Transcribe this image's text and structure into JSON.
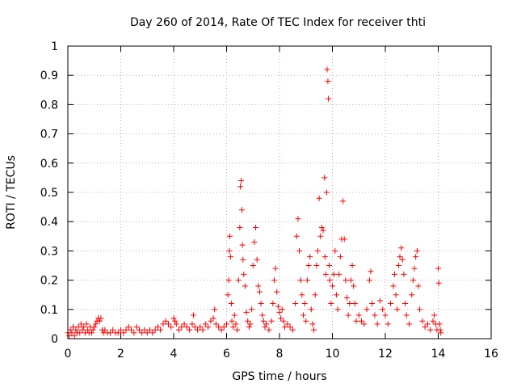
{
  "chart_data": {
    "type": "scatter",
    "title": "Day 260 of 2014, Rate Of TEC Index for receiver thti",
    "xlabel": "GPS time / hours",
    "ylabel": "ROTI / TECUs",
    "xlim": [
      0,
      16
    ],
    "ylim": [
      0,
      1
    ],
    "x_ticks": [
      0,
      2,
      4,
      6,
      8,
      10,
      12,
      14,
      16
    ],
    "x_tick_labels": [
      "0",
      "2",
      "4",
      "6",
      "8",
      "10",
      "12",
      "14",
      "16"
    ],
    "y_ticks": [
      0,
      0.1,
      0.2,
      0.3,
      0.4,
      0.5,
      0.6,
      0.7,
      0.8,
      0.9,
      1
    ],
    "y_tick_labels": [
      "0",
      "0.1",
      "0.2",
      "0.3",
      "0.4",
      "0.5",
      "0.6",
      "0.7",
      "0.8",
      "0.9",
      "1"
    ],
    "grid": true,
    "marker": "+",
    "color": "#ff0000",
    "series": [
      {
        "name": "ROTI",
        "points": [
          [
            0.0,
            0.02
          ],
          [
            0.05,
            0.01
          ],
          [
            0.1,
            0.03
          ],
          [
            0.15,
            0.02
          ],
          [
            0.2,
            0.04
          ],
          [
            0.25,
            0.01
          ],
          [
            0.3,
            0.03
          ],
          [
            0.35,
            0.02
          ],
          [
            0.4,
            0.04
          ],
          [
            0.45,
            0.02
          ],
          [
            0.5,
            0.05
          ],
          [
            0.55,
            0.03
          ],
          [
            0.6,
            0.04
          ],
          [
            0.65,
            0.02
          ],
          [
            0.7,
            0.05
          ],
          [
            0.75,
            0.03
          ],
          [
            0.8,
            0.02
          ],
          [
            0.85,
            0.04
          ],
          [
            0.9,
            0.02
          ],
          [
            0.95,
            0.03
          ],
          [
            1.0,
            0.04
          ],
          [
            1.05,
            0.05
          ],
          [
            1.1,
            0.06
          ],
          [
            1.15,
            0.07
          ],
          [
            1.2,
            0.06
          ],
          [
            1.25,
            0.07
          ],
          [
            1.3,
            0.03
          ],
          [
            1.35,
            0.02
          ],
          [
            1.4,
            0.03
          ],
          [
            1.5,
            0.02
          ],
          [
            1.6,
            0.02
          ],
          [
            1.7,
            0.03
          ],
          [
            1.8,
            0.02
          ],
          [
            1.9,
            0.02
          ],
          [
            2.0,
            0.03
          ],
          [
            2.1,
            0.02
          ],
          [
            2.2,
            0.03
          ],
          [
            2.3,
            0.04
          ],
          [
            2.4,
            0.03
          ],
          [
            2.5,
            0.02
          ],
          [
            2.6,
            0.04
          ],
          [
            2.7,
            0.03
          ],
          [
            2.8,
            0.02
          ],
          [
            2.9,
            0.03
          ],
          [
            3.0,
            0.02
          ],
          [
            3.1,
            0.03
          ],
          [
            3.2,
            0.02
          ],
          [
            3.3,
            0.03
          ],
          [
            3.4,
            0.04
          ],
          [
            3.5,
            0.03
          ],
          [
            3.6,
            0.05
          ],
          [
            3.7,
            0.06
          ],
          [
            3.8,
            0.05
          ],
          [
            3.9,
            0.04
          ],
          [
            4.0,
            0.07
          ],
          [
            4.05,
            0.06
          ],
          [
            4.1,
            0.05
          ],
          [
            4.2,
            0.03
          ],
          [
            4.3,
            0.04
          ],
          [
            4.4,
            0.05
          ],
          [
            4.5,
            0.04
          ],
          [
            4.6,
            0.03
          ],
          [
            4.7,
            0.05
          ],
          [
            4.75,
            0.08
          ],
          [
            4.8,
            0.04
          ],
          [
            4.9,
            0.03
          ],
          [
            5.0,
            0.04
          ],
          [
            5.1,
            0.03
          ],
          [
            5.2,
            0.05
          ],
          [
            5.3,
            0.04
          ],
          [
            5.4,
            0.06
          ],
          [
            5.5,
            0.07
          ],
          [
            5.55,
            0.1
          ],
          [
            5.6,
            0.05
          ],
          [
            5.7,
            0.04
          ],
          [
            5.8,
            0.03
          ],
          [
            5.9,
            0.04
          ],
          [
            6.0,
            0.05
          ],
          [
            6.05,
            0.15
          ],
          [
            6.08,
            0.2
          ],
          [
            6.1,
            0.3
          ],
          [
            6.12,
            0.35
          ],
          [
            6.15,
            0.28
          ],
          [
            6.18,
            0.12
          ],
          [
            6.2,
            0.06
          ],
          [
            6.25,
            0.04
          ],
          [
            6.3,
            0.08
          ],
          [
            6.35,
            0.05
          ],
          [
            6.4,
            0.03
          ],
          [
            6.45,
            0.2
          ],
          [
            6.5,
            0.38
          ],
          [
            6.52,
            0.52
          ],
          [
            6.55,
            0.54
          ],
          [
            6.58,
            0.44
          ],
          [
            6.6,
            0.32
          ],
          [
            6.62,
            0.27
          ],
          [
            6.65,
            0.22
          ],
          [
            6.7,
            0.18
          ],
          [
            6.75,
            0.09
          ],
          [
            6.8,
            0.06
          ],
          [
            6.85,
            0.04
          ],
          [
            6.9,
            0.05
          ],
          [
            6.95,
            0.1
          ],
          [
            7.0,
            0.25
          ],
          [
            7.05,
            0.33
          ],
          [
            7.1,
            0.38
          ],
          [
            7.15,
            0.27
          ],
          [
            7.2,
            0.18
          ],
          [
            7.25,
            0.16
          ],
          [
            7.3,
            0.12
          ],
          [
            7.35,
            0.08
          ],
          [
            7.4,
            0.06
          ],
          [
            7.45,
            0.04
          ],
          [
            7.5,
            0.05
          ],
          [
            7.6,
            0.03
          ],
          [
            7.7,
            0.06
          ],
          [
            7.75,
            0.12
          ],
          [
            7.8,
            0.2
          ],
          [
            7.85,
            0.24
          ],
          [
            7.9,
            0.16
          ],
          [
            7.95,
            0.11
          ],
          [
            8.0,
            0.09
          ],
          [
            8.05,
            0.07
          ],
          [
            8.1,
            0.1
          ],
          [
            8.15,
            0.06
          ],
          [
            8.2,
            0.04
          ],
          [
            8.3,
            0.05
          ],
          [
            8.4,
            0.04
          ],
          [
            8.5,
            0.03
          ],
          [
            8.6,
            0.12
          ],
          [
            8.65,
            0.35
          ],
          [
            8.7,
            0.41
          ],
          [
            8.75,
            0.3
          ],
          [
            8.8,
            0.2
          ],
          [
            8.85,
            0.15
          ],
          [
            8.9,
            0.08
          ],
          [
            8.95,
            0.12
          ],
          [
            9.0,
            0.06
          ],
          [
            9.05,
            0.2
          ],
          [
            9.1,
            0.25
          ],
          [
            9.15,
            0.28
          ],
          [
            9.2,
            0.1
          ],
          [
            9.25,
            0.05
          ],
          [
            9.3,
            0.03
          ],
          [
            9.35,
            0.15
          ],
          [
            9.4,
            0.25
          ],
          [
            9.45,
            0.3
          ],
          [
            9.5,
            0.48
          ],
          [
            9.55,
            0.35
          ],
          [
            9.6,
            0.38
          ],
          [
            9.65,
            0.37
          ],
          [
            9.7,
            0.55
          ],
          [
            9.72,
            0.28
          ],
          [
            9.75,
            0.22
          ],
          [
            9.78,
            0.5
          ],
          [
            9.8,
            0.92
          ],
          [
            9.83,
            0.88
          ],
          [
            9.85,
            0.82
          ],
          [
            9.88,
            0.25
          ],
          [
            9.9,
            0.2
          ],
          [
            9.95,
            0.12
          ],
          [
            10.0,
            0.18
          ],
          [
            10.05,
            0.22
          ],
          [
            10.1,
            0.3
          ],
          [
            10.15,
            0.15
          ],
          [
            10.2,
            0.1
          ],
          [
            10.25,
            0.22
          ],
          [
            10.3,
            0.28
          ],
          [
            10.35,
            0.34
          ],
          [
            10.4,
            0.47
          ],
          [
            10.45,
            0.34
          ],
          [
            10.5,
            0.2
          ],
          [
            10.55,
            0.14
          ],
          [
            10.6,
            0.08
          ],
          [
            10.65,
            0.12
          ],
          [
            10.7,
            0.2
          ],
          [
            10.75,
            0.25
          ],
          [
            10.8,
            0.18
          ],
          [
            10.85,
            0.12
          ],
          [
            10.9,
            0.06
          ],
          [
            11.0,
            0.08
          ],
          [
            11.1,
            0.06
          ],
          [
            11.2,
            0.05
          ],
          [
            11.3,
            0.1
          ],
          [
            11.4,
            0.2
          ],
          [
            11.45,
            0.23
          ],
          [
            11.5,
            0.12
          ],
          [
            11.6,
            0.08
          ],
          [
            11.7,
            0.05
          ],
          [
            11.8,
            0.13
          ],
          [
            11.9,
            0.1
          ],
          [
            12.0,
            0.08
          ],
          [
            12.1,
            0.05
          ],
          [
            12.2,
            0.12
          ],
          [
            12.3,
            0.18
          ],
          [
            12.35,
            0.22
          ],
          [
            12.4,
            0.15
          ],
          [
            12.45,
            0.1
          ],
          [
            12.5,
            0.25
          ],
          [
            12.55,
            0.28
          ],
          [
            12.6,
            0.31
          ],
          [
            12.65,
            0.27
          ],
          [
            12.7,
            0.22
          ],
          [
            12.75,
            0.12
          ],
          [
            12.8,
            0.08
          ],
          [
            12.9,
            0.05
          ],
          [
            13.0,
            0.15
          ],
          [
            13.05,
            0.2
          ],
          [
            13.1,
            0.24
          ],
          [
            13.15,
            0.28
          ],
          [
            13.2,
            0.3
          ],
          [
            13.25,
            0.18
          ],
          [
            13.3,
            0.1
          ],
          [
            13.4,
            0.06
          ],
          [
            13.5,
            0.04
          ],
          [
            13.6,
            0.05
          ],
          [
            13.7,
            0.03
          ],
          [
            13.8,
            0.06
          ],
          [
            13.85,
            0.08
          ],
          [
            13.9,
            0.05
          ],
          [
            13.95,
            0.03
          ],
          [
            14.0,
            0.24
          ],
          [
            14.02,
            0.19
          ],
          [
            14.05,
            0.05
          ],
          [
            14.08,
            0.03
          ],
          [
            14.1,
            0.02
          ]
        ]
      }
    ]
  }
}
